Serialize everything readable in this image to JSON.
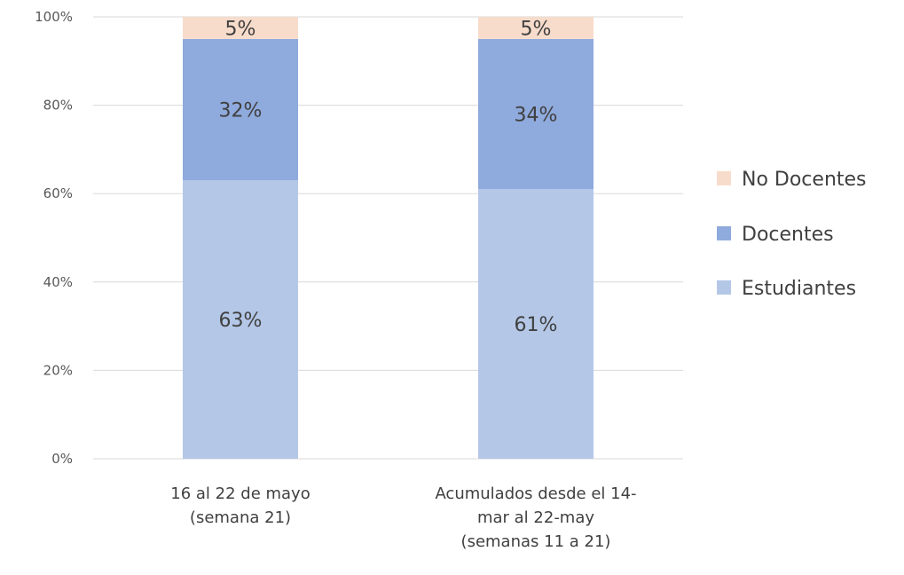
{
  "chart_data": {
    "type": "bar",
    "stacked": true,
    "percent": true,
    "categories": [
      [
        "16 al 22 de mayo",
        "(semana 21)"
      ],
      [
        "Acumulados desde el 14-",
        "mar al 22-may",
        "(semanas 11 a 21)"
      ]
    ],
    "series": [
      {
        "name": "Estudiantes",
        "values": [
          63,
          61
        ],
        "labels": [
          "63%",
          "61%"
        ],
        "color": "#b4c7e7"
      },
      {
        "name": "Docentes",
        "values": [
          32,
          34
        ],
        "labels": [
          "32%",
          "34%"
        ],
        "color": "#8faadc"
      },
      {
        "name": "No Docentes",
        "values": [
          5,
          5
        ],
        "labels": [
          "5%",
          "5%"
        ],
        "color": "#f8dccb"
      }
    ],
    "yticks": [
      "0%",
      "20%",
      "40%",
      "60%",
      "80%",
      "100%"
    ],
    "ylim": [
      0,
      100
    ],
    "grid": true,
    "legend_position": "right",
    "legend_order": [
      "No Docentes",
      "Docentes",
      "Estudiantes"
    ]
  }
}
